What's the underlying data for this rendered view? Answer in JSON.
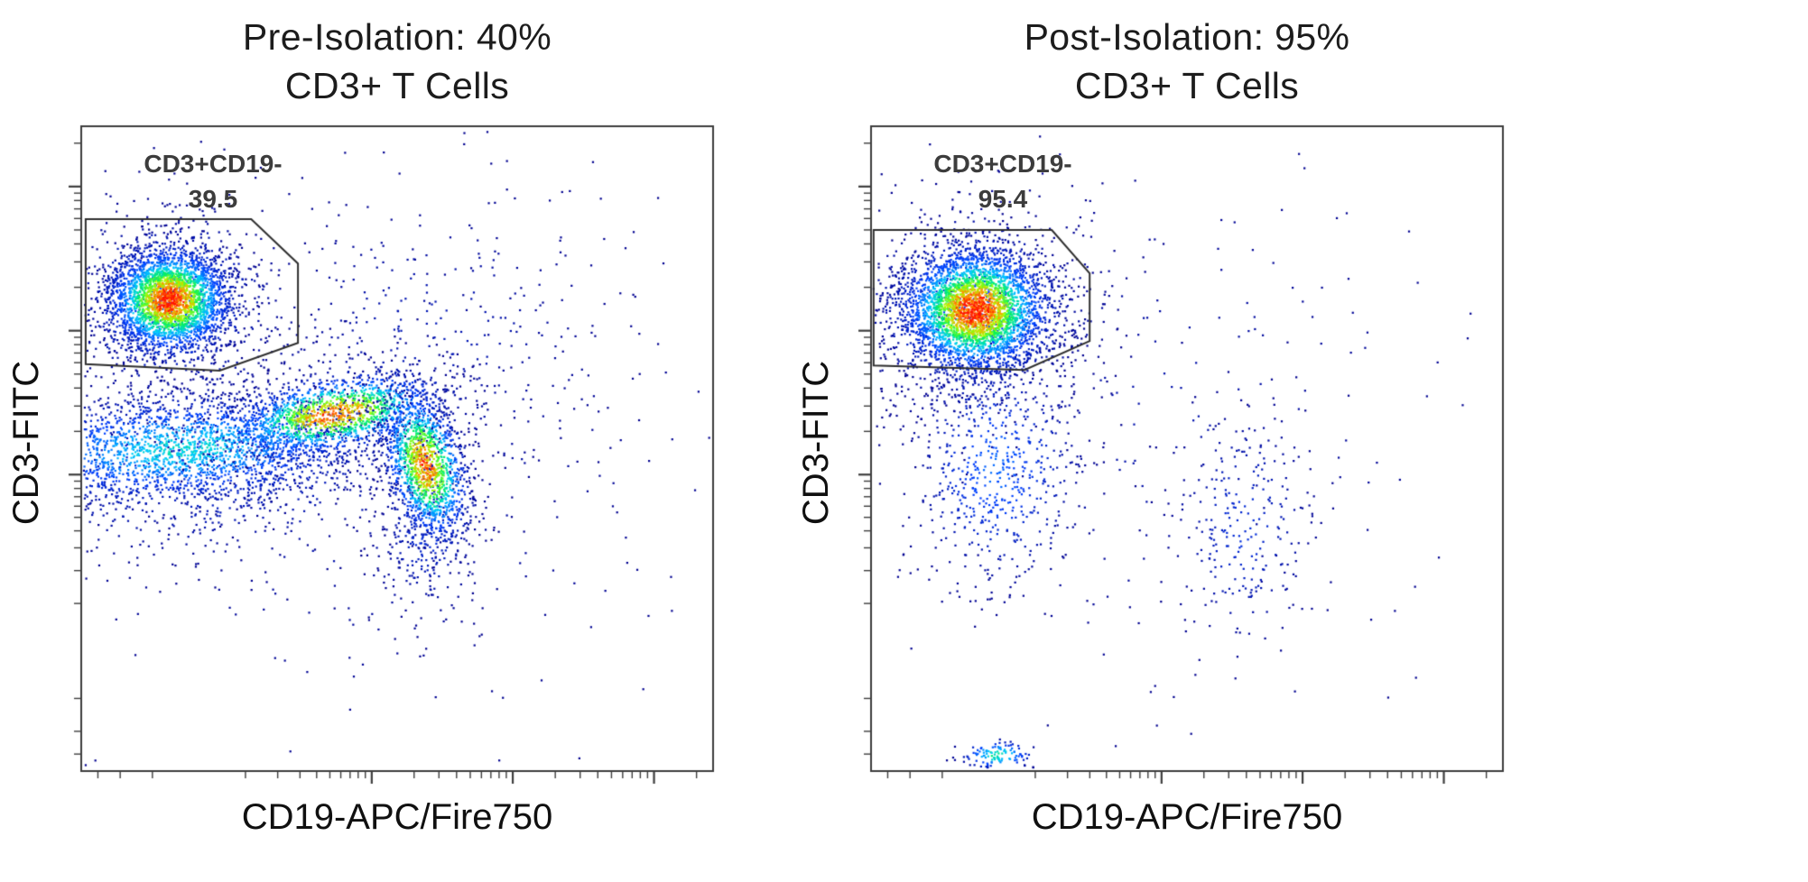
{
  "figure": {
    "background": "#ffffff",
    "axis_color": "#3d3d3d",
    "gate_color": "#2e2e2e",
    "text_color": "#1c1c1c",
    "dot_colormap": [
      [
        0,
        "#00008f"
      ],
      [
        0.18,
        "#0040ff"
      ],
      [
        0.38,
        "#00ccff"
      ],
      [
        0.55,
        "#00f060"
      ],
      [
        0.7,
        "#aaff00"
      ],
      [
        0.85,
        "#ff9500"
      ],
      [
        1,
        "#ff1400"
      ]
    ]
  },
  "chart_data": [
    {
      "type": "scatter",
      "variant": "flow-cytometry-pseudocolor-density",
      "title": "Pre-Isolation: 40% CD3+ T Cells",
      "title_line1": "Pre-Isolation: 40%",
      "title_line2": "CD3+ T Cells",
      "xlabel": "CD19-APC/Fire750",
      "ylabel": "CD3-FITC",
      "axis": {
        "scale": "asinh",
        "linear_width": 120,
        "min": -400,
        "max": 262000,
        "major_ticks": [
          1000,
          10000,
          100000
        ],
        "grid": false,
        "tick_labels": "none"
      },
      "gate": {
        "label": "CD3+CD19-",
        "value": "39.5",
        "polygon": [
          [
            0.007,
            0.144
          ],
          [
            0.269,
            0.144
          ],
          [
            0.343,
            0.213
          ],
          [
            0.343,
            0.336
          ],
          [
            0.219,
            0.379
          ],
          [
            0.007,
            0.369
          ]
        ]
      },
      "populations": [
        {
          "name": "diffuse scatter",
          "cx": 0.42,
          "cy": 0.52,
          "sx": 0.3,
          "sy": 0.22,
          "rot": 0,
          "n": 300,
          "intensity": 0.05
        },
        {
          "name": "upper right scatter",
          "cx": 0.55,
          "cy": 0.32,
          "sx": 0.16,
          "sy": 0.12,
          "rot": 0,
          "n": 300,
          "intensity": 0.06
        },
        {
          "name": "CD3+ T cell halo",
          "cx": 0.14,
          "cy": 0.275,
          "sx": 0.09,
          "sy": 0.075,
          "rot": 0,
          "n": 650,
          "intensity": 0.22
        },
        {
          "name": "CD3- band halo",
          "cx": 0.2,
          "cy": 0.52,
          "sx": 0.21,
          "sy": 0.08,
          "rot": -3,
          "n": 800,
          "intensity": 0.13
        },
        {
          "name": "B cell tail",
          "cx": 0.55,
          "cy": 0.62,
          "sx": 0.045,
          "sy": 0.075,
          "rot": 0,
          "n": 350,
          "intensity": 0.12
        },
        {
          "name": "CD3- band",
          "cx": 0.16,
          "cy": 0.5,
          "sx": 0.16,
          "sy": 0.045,
          "rot": -3,
          "n": 2200,
          "intensity": 0.42
        },
        {
          "name": "monocyte streak",
          "cx": 0.4,
          "cy": 0.447,
          "sx": 0.09,
          "sy": 0.03,
          "rot": -10,
          "n": 1400,
          "intensity": 0.9
        },
        {
          "name": "CD19+ B cells",
          "cx": 0.545,
          "cy": 0.525,
          "sx": 0.032,
          "sy": 0.062,
          "rot": -15,
          "n": 1300,
          "intensity": 0.9
        },
        {
          "name": "CD3+ T cells core",
          "cx": 0.14,
          "cy": 0.27,
          "sx": 0.05,
          "sy": 0.042,
          "rot": 0,
          "n": 2800,
          "intensity": 1
        }
      ]
    },
    {
      "type": "scatter",
      "variant": "flow-cytometry-pseudocolor-density",
      "title": "Post-Isolation: 95% CD3+ T Cells",
      "title_line1": "Post-Isolation: 95%",
      "title_line2": "CD3+ T Cells",
      "xlabel": "CD19-APC/Fire750",
      "ylabel": "CD3-FITC",
      "axis": {
        "scale": "asinh",
        "linear_width": 120,
        "min": -400,
        "max": 262000,
        "major_ticks": [
          1000,
          10000,
          100000
        ],
        "grid": false,
        "tick_labels": "none"
      },
      "gate": {
        "label": "CD3+CD19-",
        "value": "95.4",
        "polygon": [
          [
            0.004,
            0.161
          ],
          [
            0.286,
            0.161
          ],
          [
            0.346,
            0.228
          ],
          [
            0.346,
            0.333
          ],
          [
            0.243,
            0.378
          ],
          [
            0.004,
            0.371
          ]
        ]
      },
      "populations": [
        {
          "name": "diffuse scatter",
          "cx": 0.45,
          "cy": 0.45,
          "sx": 0.27,
          "sy": 0.22,
          "rot": 0,
          "n": 200,
          "intensity": 0.045
        },
        {
          "name": "CD3+ T cell halo",
          "cx": 0.165,
          "cy": 0.29,
          "sx": 0.1,
          "sy": 0.085,
          "rot": 0,
          "n": 750,
          "intensity": 0.2
        },
        {
          "name": "residual cells below gate",
          "cx": 0.2,
          "cy": 0.53,
          "sx": 0.07,
          "sy": 0.095,
          "rot": 0,
          "n": 600,
          "intensity": 0.22
        },
        {
          "name": "residual CD19 scatter",
          "cx": 0.59,
          "cy": 0.62,
          "sx": 0.06,
          "sy": 0.1,
          "rot": 0,
          "n": 280,
          "intensity": 0.12
        },
        {
          "name": "axis smudge",
          "cx": 0.2,
          "cy": 0.975,
          "sx": 0.03,
          "sy": 0.012,
          "rot": 0,
          "n": 120,
          "intensity": 0.5
        },
        {
          "name": "CD3+ T cells core",
          "cx": 0.165,
          "cy": 0.285,
          "sx": 0.06,
          "sy": 0.05,
          "rot": 0,
          "n": 3400,
          "intensity": 1
        }
      ]
    }
  ]
}
